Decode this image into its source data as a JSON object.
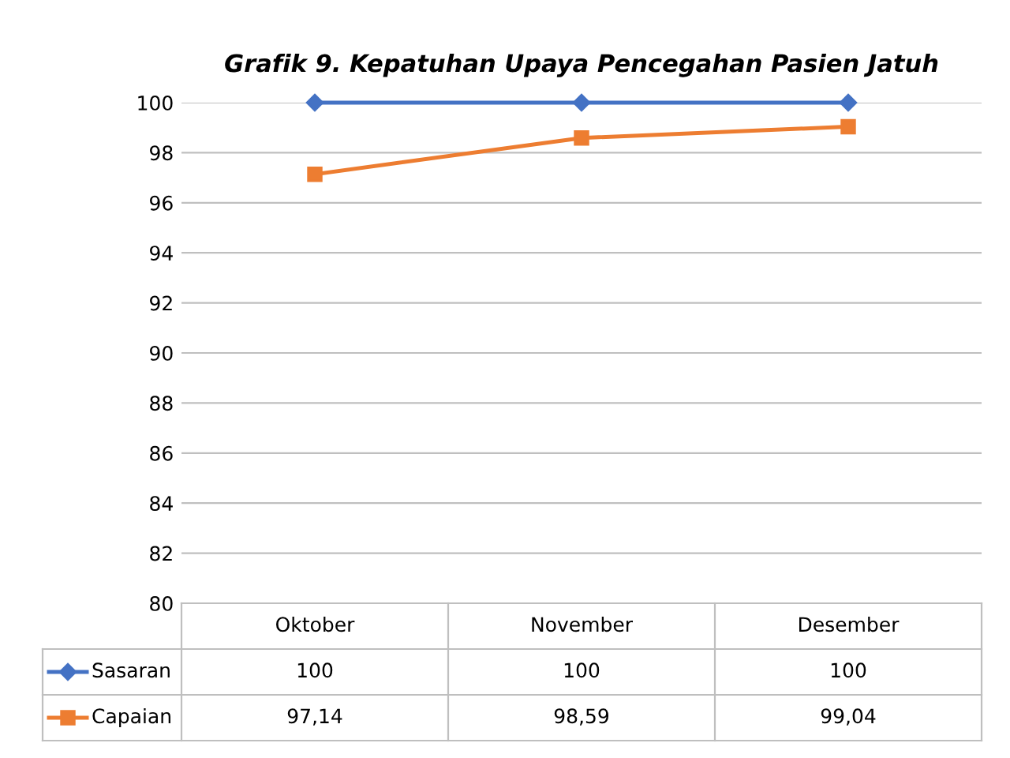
{
  "chart_data": {
    "type": "line",
    "title": "Grafik 9. Kepatuhan Upaya Pencegahan Pasien Jatuh",
    "categories": [
      "Oktober",
      "November",
      "Desember"
    ],
    "series": [
      {
        "name": "Sasaran",
        "color": "#4472c4",
        "marker": "diamond",
        "values": [
          100,
          100,
          100
        ],
        "value_labels": [
          "100",
          "100",
          "100"
        ]
      },
      {
        "name": "Capaian",
        "color": "#ed7d31",
        "marker": "square",
        "values": [
          97.14,
          98.59,
          99.04
        ],
        "value_labels": [
          "97,14",
          "98,59",
          "99,04"
        ]
      }
    ],
    "ylim": [
      80,
      100
    ],
    "yticks": [
      80,
      82,
      84,
      86,
      88,
      90,
      92,
      94,
      96,
      98,
      100
    ],
    "grid": "y",
    "legend": "bottom"
  }
}
